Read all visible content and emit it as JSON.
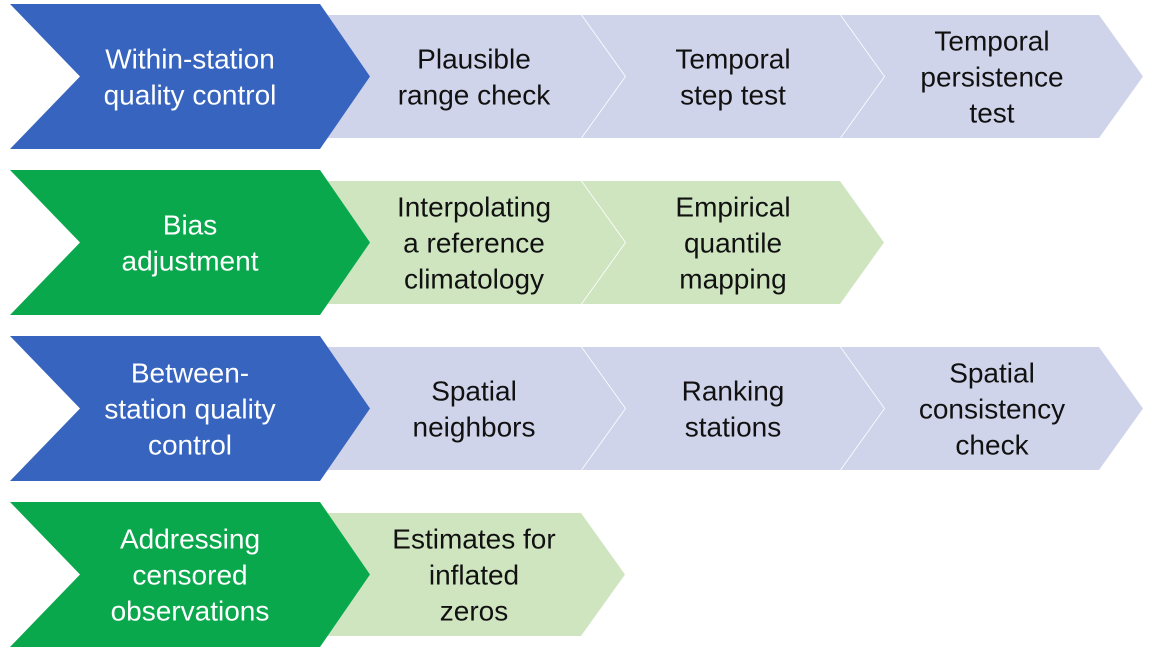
{
  "colors": {
    "qc_head": "#3764be",
    "qc_step": "#d0d4ea",
    "adj_head": "#0aa84d",
    "adj_step": "#cfe5c0",
    "head_text": "#ffffff",
    "step_text": "#111111"
  },
  "rows": [
    {
      "kind": "qc",
      "header": {
        "lines": [
          "Within-station",
          "quality control"
        ]
      },
      "steps": [
        {
          "lines": [
            "Plausible",
            "range check"
          ]
        },
        {
          "lines": [
            "Temporal",
            "step test"
          ]
        },
        {
          "lines": [
            "Temporal",
            "persistence",
            "test"
          ]
        }
      ]
    },
    {
      "kind": "adj",
      "header": {
        "lines": [
          "Bias",
          "adjustment"
        ]
      },
      "steps": [
        {
          "lines": [
            "Interpolating",
            "a reference",
            "climatology"
          ]
        },
        {
          "lines": [
            "Empirical",
            "quantile",
            "mapping"
          ]
        }
      ]
    },
    {
      "kind": "qc",
      "header": {
        "lines": [
          "Between-",
          "station quality",
          "control"
        ]
      },
      "steps": [
        {
          "lines": [
            "Spatial",
            "neighbors"
          ]
        },
        {
          "lines": [
            "Ranking",
            "stations"
          ]
        },
        {
          "lines": [
            "Spatial",
            "consistency",
            "check"
          ]
        }
      ]
    },
    {
      "kind": "adj",
      "header": {
        "lines": [
          "Addressing",
          "censored",
          "observations"
        ]
      },
      "steps": [
        {
          "lines": [
            "Estimates for",
            "inflated",
            "zeros"
          ]
        }
      ]
    }
  ]
}
